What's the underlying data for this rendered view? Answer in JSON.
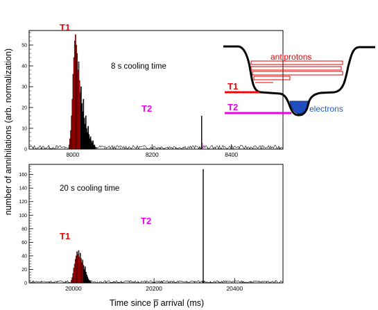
{
  "figure": {
    "ylabel": "number of annihilations (arb. normalization)",
    "xlabel": "Time since p̅ arrival (ms)"
  },
  "colors": {
    "t1": "#ff0000",
    "t2": "#ee00ee",
    "electrons": "#1f4fbf",
    "electrons_label": "#1f5fbf",
    "data_line": "#000000"
  },
  "chart_data": [
    {
      "type": "histogram",
      "panel": "top",
      "annotation": "8 s cooling time",
      "markers": [
        {
          "label": "T1",
          "x": 8010,
          "color": "#ff0000"
        },
        {
          "label": "T2",
          "x": 8325,
          "color": "#ee00ee"
        }
      ],
      "xlim": [
        7890,
        8530
      ],
      "ylim": [
        0,
        57
      ],
      "xticks": [
        8000,
        8200,
        8400
      ],
      "yticks": [
        0,
        10,
        20,
        30,
        40,
        50
      ],
      "xtick_labels": [
        "8000",
        "8200",
        "8400"
      ],
      "ytick_labels": [
        "0",
        "10",
        "20",
        "30",
        "40",
        "50"
      ],
      "grid": false,
      "bin_width": 2,
      "x": [
        7990,
        7992,
        7994,
        7996,
        7998,
        8000,
        8002,
        8004,
        8006,
        8008,
        8010,
        8012,
        8014,
        8016,
        8018,
        8020,
        8022,
        8024,
        8026,
        8028,
        8030,
        8032,
        8034,
        8036,
        8038,
        8040,
        8042,
        8044,
        8046,
        8048,
        8050,
        8052,
        8054,
        8056
      ],
      "values": [
        2,
        5,
        9,
        16,
        24,
        36,
        44,
        52,
        55,
        50,
        46,
        38,
        42,
        33,
        27,
        30,
        22,
        18,
        24,
        15,
        12,
        16,
        10,
        8,
        11,
        7,
        5,
        6,
        4,
        3,
        4,
        2,
        2,
        1
      ],
      "highlight_range": [
        7990,
        8020
      ],
      "spike": {
        "x": 8325,
        "y": 16,
        "color": "#ee00ee"
      },
      "background": 1
    },
    {
      "type": "histogram",
      "panel": "bottom",
      "annotation": "20 s cooling time",
      "markers": [
        {
          "label": "T1",
          "x": 20050,
          "color": "#ff0000"
        },
        {
          "label": "T2",
          "x": 20320,
          "color": "#ee00ee"
        }
      ],
      "xlim": [
        19890,
        20520
      ],
      "ylim": [
        0,
        175
      ],
      "xticks": [
        20000,
        20200,
        20400
      ],
      "yticks": [
        0,
        20,
        40,
        60,
        80,
        100,
        120,
        140,
        160
      ],
      "xtick_labels": [
        "20000",
        "20200",
        "20400"
      ],
      "ytick_labels": [
        "0",
        "20",
        "40",
        "60",
        "80",
        "100",
        "120",
        "140",
        "160"
      ],
      "grid": false,
      "bin_width": 2,
      "x": [
        19994,
        19996,
        19998,
        20000,
        20002,
        20004,
        20006,
        20008,
        20010,
        20012,
        20014,
        20016,
        20018,
        20020,
        20022,
        20024,
        20026,
        20028,
        20030,
        20032,
        20034,
        20036,
        20038,
        20040,
        20042
      ],
      "values": [
        4,
        8,
        14,
        22,
        28,
        35,
        40,
        46,
        42,
        48,
        38,
        44,
        36,
        30,
        34,
        26,
        20,
        24,
        16,
        12,
        9,
        6,
        4,
        3,
        2
      ],
      "highlight_range": [
        19994,
        20024
      ],
      "spike": {
        "x": 20322,
        "y": 168,
        "color": "#000000"
      },
      "background": 2
    }
  ],
  "diagram": {
    "labels": {
      "antiprotons": "antiprotons",
      "electrons": "electrons",
      "t1": "T1",
      "t2": "T2"
    }
  }
}
